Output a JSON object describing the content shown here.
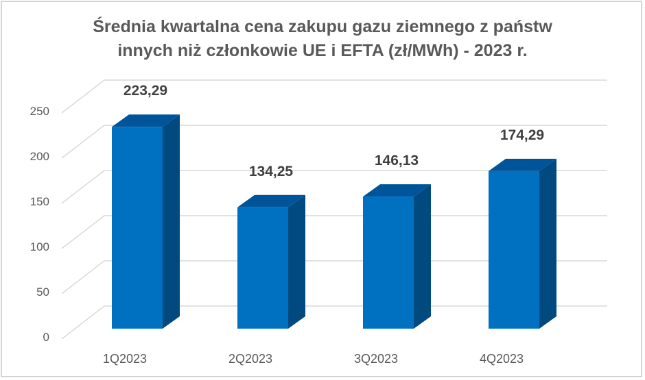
{
  "chart_data": {
    "type": "bar",
    "style": "3d-column",
    "title": "Średnia kwartalna cena zakupu gazu ziemnego z państw innych niż członkowie UE i EFTA (zł/MWh) - 2023 r.",
    "title_lines": [
      "Średnia kwartalna cena zakupu gazu ziemnego z państw",
      "innych niż członkowie UE i EFTA (zł/MWh) - 2023 r."
    ],
    "categories": [
      "1Q2023",
      "2Q2023",
      "3Q2023",
      "4Q2023"
    ],
    "values": [
      223.29,
      134.25,
      146.13,
      174.29
    ],
    "data_labels": [
      "223,29",
      "134,25",
      "146,13",
      "174,29"
    ],
    "xlabel": "",
    "ylabel": "",
    "ylim": [
      0,
      250
    ],
    "yticks": [
      0,
      50,
      100,
      150,
      200,
      250
    ],
    "ytick_labels": [
      "0",
      "50",
      "100",
      "150",
      "200",
      "250"
    ],
    "grid": true,
    "legend": "none",
    "colors": {
      "front": "#0070C0",
      "side": "#004A80",
      "top": "#00559A",
      "grid": "#d9d9d9",
      "text": "#595959"
    }
  }
}
